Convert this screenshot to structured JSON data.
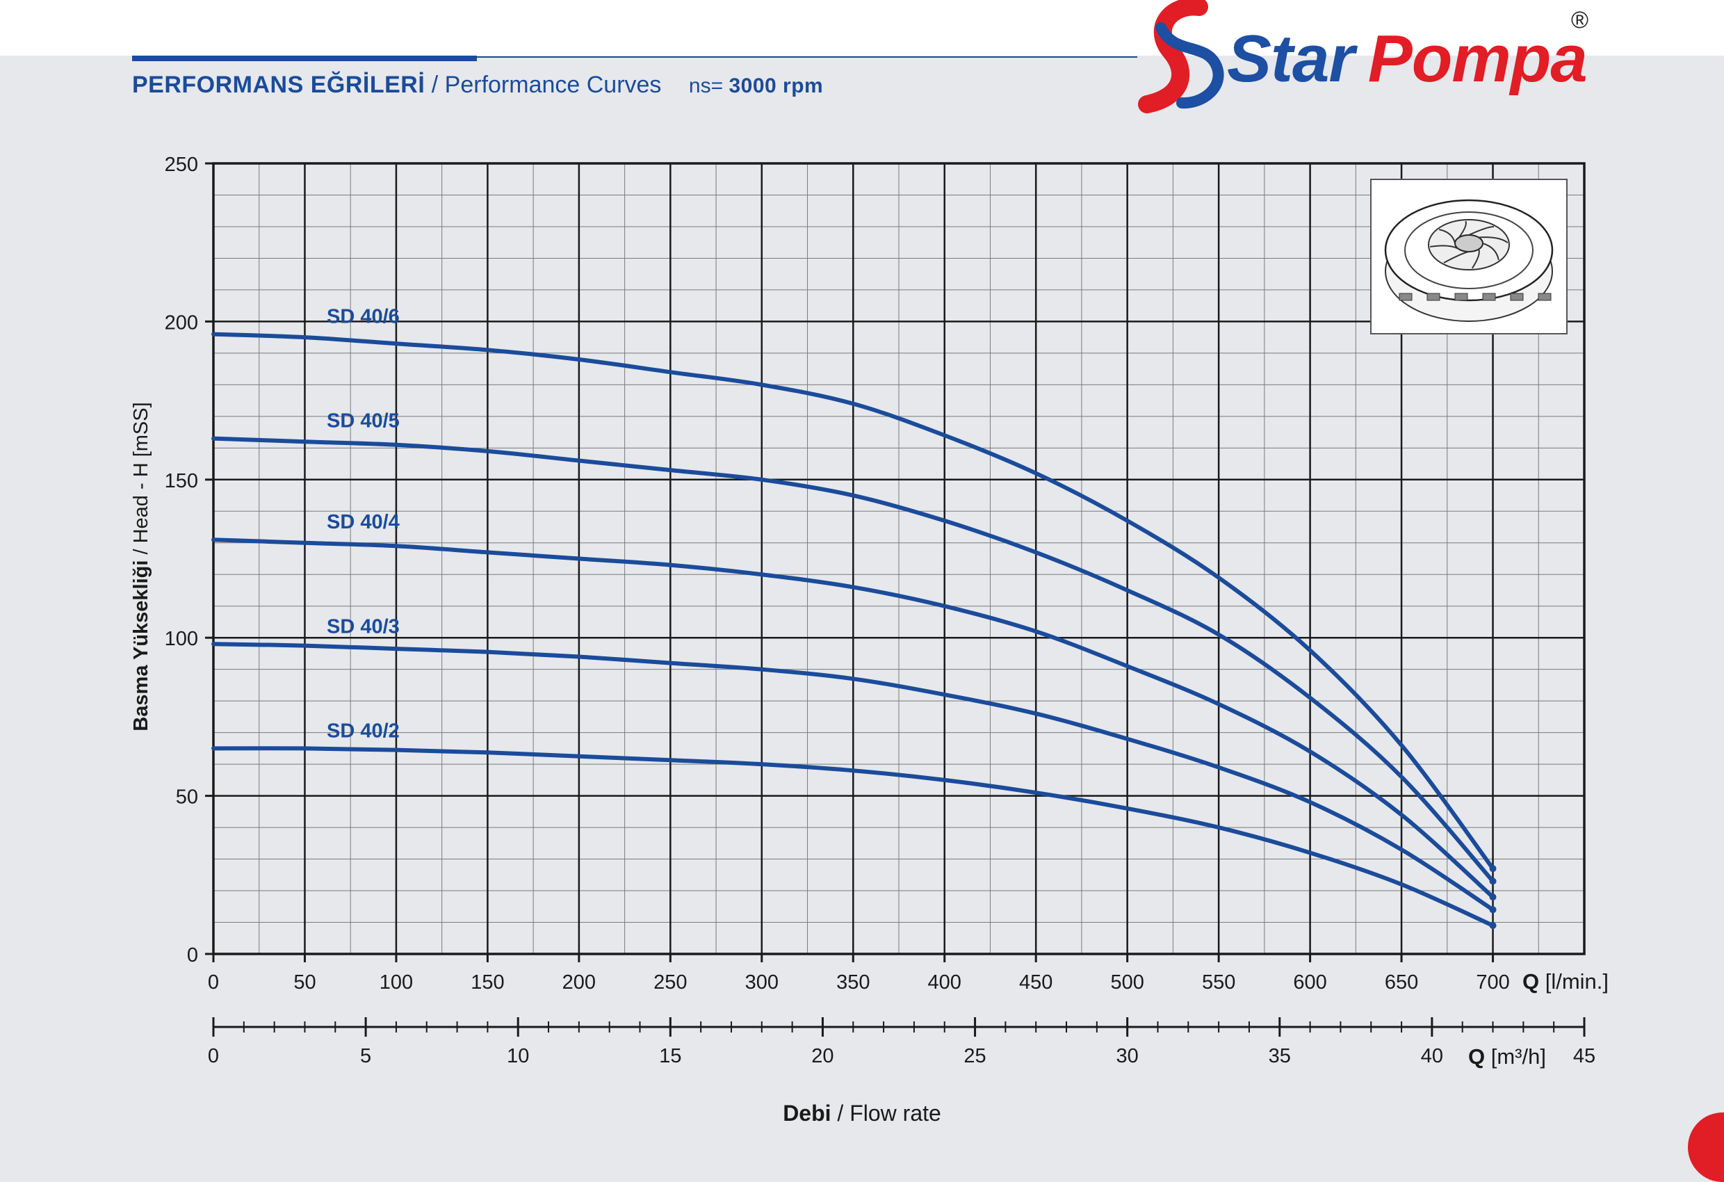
{
  "header": {
    "title_tr": "PERFORMANS EĞRİLERİ",
    "title_en": "/ Performance Curves",
    "speed_label": "ns=",
    "speed_value": "3000 rpm"
  },
  "logo": {
    "brand_word1": "Star",
    "brand_word2": "Pompa",
    "registered": "®",
    "colors": {
      "blue": "#1d4fa3",
      "red": "#e11d25"
    }
  },
  "chart_data": {
    "type": "line",
    "title": "",
    "ylabel": "Basma Yüksekliği / Head - H [mSS]",
    "ylabel_bold": "Basma Yüksekliği",
    "ylabel_rest": " / Head - H [mSS]",
    "xlabel_bold": "Debi",
    "xlabel_rest": " / Flow rate",
    "x_unit_lmin_bold": "Q",
    "x_unit_lmin_rest": " [l/min.]",
    "x_unit_m3h_bold": "Q",
    "x_unit_m3h_rest": " [m³/h]",
    "xlim": [
      0,
      750
    ],
    "ylim": [
      0,
      250
    ],
    "x_ticks": [
      0,
      50,
      100,
      150,
      200,
      250,
      300,
      350,
      400,
      450,
      500,
      550,
      600,
      650,
      700
    ],
    "y_ticks": [
      0,
      50,
      100,
      150,
      200,
      250
    ],
    "x2_ticks": [
      0,
      5,
      10,
      15,
      20,
      25,
      30,
      35,
      40,
      45
    ],
    "grid": true,
    "line_color": "#1b4b9b",
    "series": [
      {
        "name": "SD 40/6",
        "x": [
          0,
          50,
          100,
          150,
          200,
          250,
          300,
          350,
          400,
          450,
          500,
          550,
          600,
          650,
          700
        ],
        "y": [
          196,
          195,
          193,
          191,
          188,
          184,
          180,
          174,
          164,
          152,
          137,
          119,
          96,
          66,
          27
        ]
      },
      {
        "name": "SD 40/5",
        "x": [
          0,
          50,
          100,
          150,
          200,
          250,
          300,
          350,
          400,
          450,
          500,
          550,
          600,
          650,
          700
        ],
        "y": [
          163,
          162,
          161,
          159,
          156,
          153,
          150,
          145,
          137,
          127,
          115,
          101,
          81,
          56,
          23
        ]
      },
      {
        "name": "SD 40/4",
        "x": [
          0,
          50,
          100,
          150,
          200,
          250,
          300,
          350,
          400,
          450,
          500,
          550,
          600,
          650,
          700
        ],
        "y": [
          131,
          130,
          129,
          127,
          125,
          123,
          120,
          116,
          110,
          102,
          91,
          79,
          64,
          44,
          18
        ]
      },
      {
        "name": "SD 40/3",
        "x": [
          0,
          50,
          100,
          150,
          200,
          250,
          300,
          350,
          400,
          450,
          500,
          550,
          600,
          650,
          700
        ],
        "y": [
          98,
          97.5,
          96.5,
          95.5,
          94,
          92,
          90,
          87,
          82,
          76,
          68,
          59,
          48,
          33,
          14
        ]
      },
      {
        "name": "SD 40/2",
        "x": [
          0,
          50,
          100,
          150,
          200,
          250,
          300,
          350,
          400,
          450,
          500,
          550,
          600,
          650,
          700
        ],
        "y": [
          65,
          65,
          64.5,
          63.7,
          62.5,
          61.3,
          60,
          58,
          55,
          51,
          46,
          40,
          32,
          22,
          9
        ]
      }
    ]
  }
}
